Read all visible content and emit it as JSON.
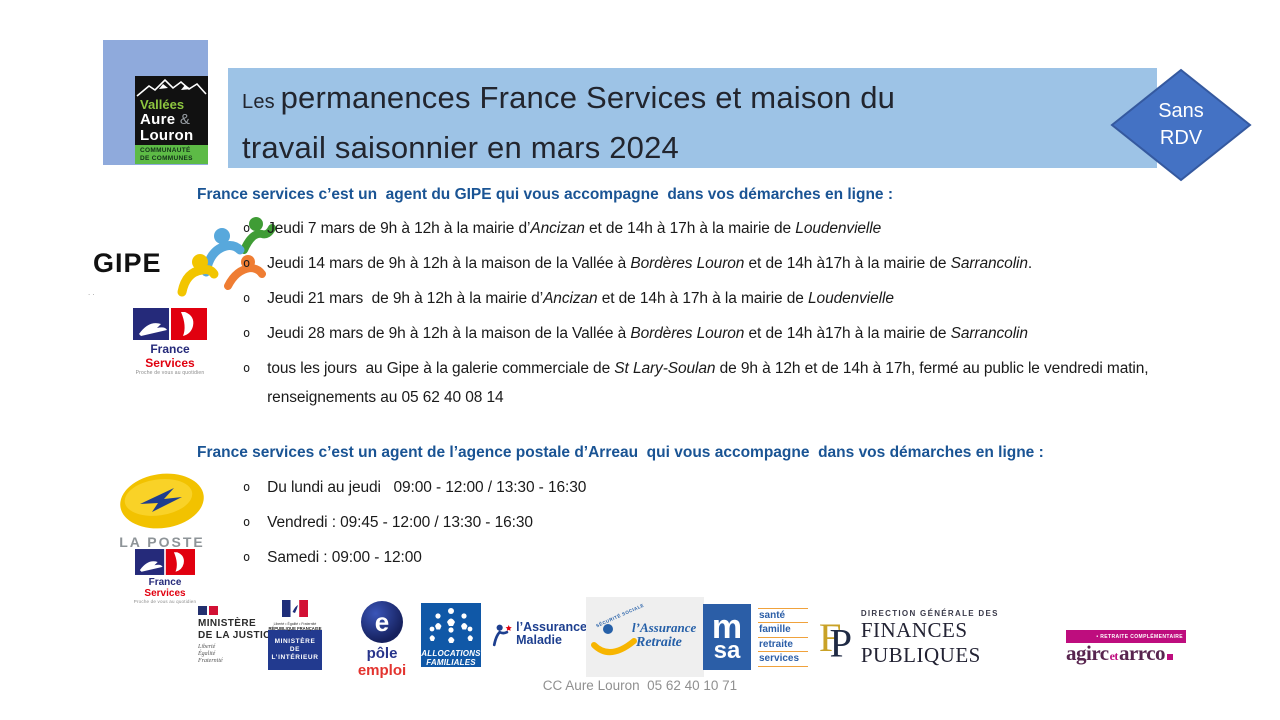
{
  "colors": {
    "banner_bg": "#9DC3E6",
    "org_logo_bg": "#8FAADC",
    "badge_fill": "#4472C4",
    "badge_border": "#35599F",
    "heading_blue": "#1A5494",
    "body_text": "#1a1a1a",
    "footer_gray": "#909090"
  },
  "org_logo": {
    "name1": "Vallées",
    "name2": "Aure",
    "amp": "&",
    "name3": "Louron",
    "sub1": "COMMUNAUTÉ",
    "sub2": "DE COMMUNES"
  },
  "title": {
    "prefix": "Les ",
    "line1_rest": "permanences France Services et maison du",
    "line2": "travail saisonnier en mars 2024"
  },
  "badge": {
    "line1": "Sans",
    "line2": "RDV"
  },
  "gipe_logo": {
    "text": "GIPE",
    "dots": ". ."
  },
  "fs_logo": {
    "name1": "France",
    "name2": " Services",
    "tagline": "Proche de vous au quotidien"
  },
  "laposte_logo": {
    "text": "LA POSTE"
  },
  "sections": [
    {
      "heading": "France services c’est un  agent du GIPE qui vous accompagne  dans vos démarches en ligne :",
      "bullet": "o",
      "items": [
        [
          {
            "t": "Jeudi 7 mars de 9h à 12h à la mairie d’"
          },
          {
            "t": "Ancizan",
            "i": true
          },
          {
            "t": " et de 14h à 17h à la mairie de "
          },
          {
            "t": "Loudenvielle",
            "i": true
          }
        ],
        [
          {
            "t": "Jeudi 14 mars de 9h à 12h à la maison de la Vallée à "
          },
          {
            "t": "Bordères Louron",
            "i": true
          },
          {
            "t": " et de 14h à17h à la mairie de "
          },
          {
            "t": "Sarrancolin",
            "i": true
          },
          {
            "t": "."
          }
        ],
        [
          {
            "t": "Jeudi 21 mars  de 9h à 12h à la mairie d’"
          },
          {
            "t": "Ancizan",
            "i": true
          },
          {
            "t": " et de 14h à 17h à la mairie de "
          },
          {
            "t": "Loudenvielle",
            "i": true
          }
        ],
        [
          {
            "t": "Jeudi 28 mars de 9h à 12h à la maison de la Vallée à "
          },
          {
            "t": "Bordères Louron",
            "i": true
          },
          {
            "t": " et de 14h à17h à la mairie de "
          },
          {
            "t": "Sarrancolin",
            "i": true
          }
        ],
        [
          {
            "t": "tous les jours  au Gipe à la galerie commerciale de "
          },
          {
            "t": "St Lary-Soulan",
            "i": true
          },
          {
            "t": " de 9h à 12h et de 14h à 17h, fermé au public le vendredi matin, renseignements au 05 62 40 08 14"
          }
        ]
      ]
    },
    {
      "heading": "France services c’est un agent de l’agence postale d’Arreau  qui vous accompagne  dans vos démarches en ligne :",
      "bullet": "o",
      "items": [
        [
          {
            "t": "Du lundi au jeudi   09:00 - 12:00 / 13:30 - 16:30"
          }
        ],
        [
          {
            "t": "Vendredi : 09:45 - 12:00 / 13:30 - 16:30"
          }
        ],
        [
          {
            "t": "Samedi : 09:00 - 12:00"
          }
        ]
      ]
    }
  ],
  "footer_logos": {
    "justice": {
      "line1": "MINISTÈRE",
      "line2": "DE LA JUSTICE",
      "motto1": "Liberté",
      "motto2": "Égalité",
      "motto3": "Fraternité"
    },
    "interieur": {
      "motto": "Liberté • Égalité • Fraternité",
      "rep": "RÉPUBLIQUE FRANÇAISE",
      "line1": "MINISTÈRE",
      "line2": "DE",
      "line3": "L’INTÉRIEUR"
    },
    "pole_emploi": {
      "letter": "e",
      "word1": "pôle ",
      "word2": "emploi"
    },
    "caf": {
      "line1": "ALLOCATIONS",
      "line2": "FAMILIALES"
    },
    "maladie": {
      "line1": "l’Assurance",
      "line2": "Maladie"
    },
    "retraite": {
      "arc": "SÉCURITÉ SOCIALE",
      "line1": "l’Assurance",
      "line2": "Retraite"
    },
    "msa": {
      "letter_top": "m",
      "letter_bottom": "sa",
      "word1": "santé",
      "word2": "famille",
      "word3": "retraite",
      "word4": "services"
    },
    "dgfip": {
      "mono1": "F",
      "mono2": "P",
      "small": "DIRECTION GÉNÉRALE DES",
      "big": "FINANCES PUBLIQUES"
    },
    "agirc": {
      "tag": "• RETRAITE COMPLÉMENTAIRE",
      "name1": "agirc",
      "et": "et",
      "name2": "arrco"
    }
  },
  "footer": {
    "text": "CC Aure Louron  05 62 40 10 71"
  }
}
